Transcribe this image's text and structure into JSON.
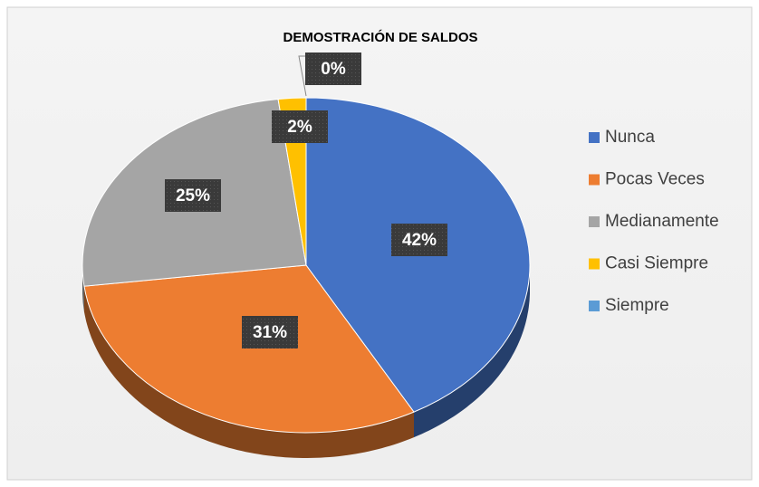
{
  "chart_data": {
    "type": "pie",
    "title": "DEMOSTRACIÓN DE SALDOS",
    "categories": [
      "Nunca",
      "Pocas Veces",
      "Medianamente",
      "Casi Siempre",
      "Siempre"
    ],
    "values": [
      42,
      31,
      25,
      2,
      0
    ],
    "value_labels": [
      "42%",
      "31%",
      "25%",
      "2%",
      "0%"
    ],
    "colors": [
      "#4472c4",
      "#ed7d31",
      "#a5a5a5",
      "#ffc000",
      "#5b9bd5"
    ],
    "legend": "right"
  }
}
